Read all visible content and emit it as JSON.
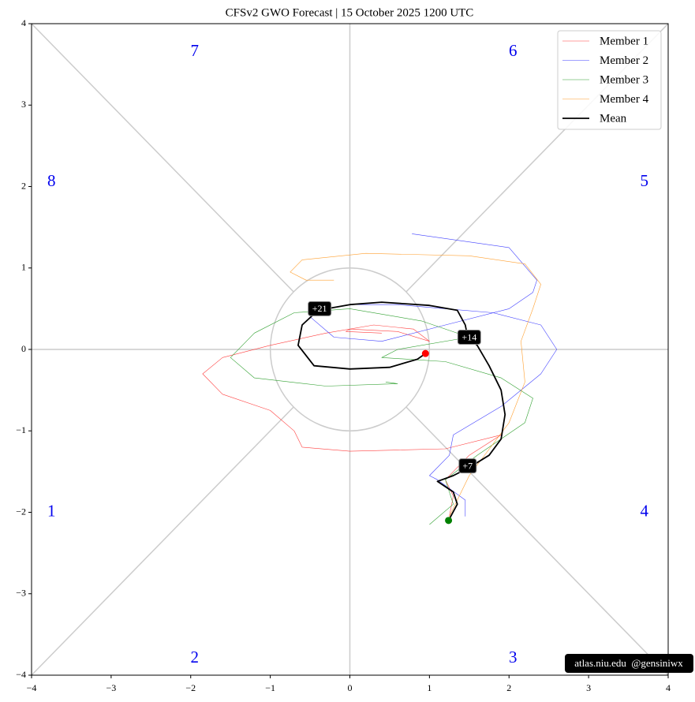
{
  "chart_data": {
    "type": "line",
    "title": "CFSv2 GWO Forecast   |   15  October  2025 1200 UTC",
    "xlim": [
      -4,
      4
    ],
    "ylim": [
      -4,
      4
    ],
    "xticks": [
      {
        "value": -4,
        "label": "−4"
      },
      {
        "value": -3,
        "label": "−3"
      },
      {
        "value": -2,
        "label": "−2"
      },
      {
        "value": -1,
        "label": "−1"
      },
      0,
      1,
      2,
      3,
      4
    ],
    "yticks": [
      {
        "value": -4,
        "label": "−4"
      },
      {
        "value": -3,
        "label": "−3"
      },
      {
        "value": -2,
        "label": "−2"
      },
      {
        "value": -1,
        "label": "−1"
      },
      0,
      1,
      2,
      3,
      4
    ],
    "legend_position": "upper right",
    "phase_labels": [
      "1",
      "2",
      "3",
      "4",
      "5",
      "6",
      "7",
      "8"
    ],
    "start_color": "green",
    "end_color": "red",
    "series": [
      {
        "name": "Member 1",
        "color": "#ff4040",
        "width": 0.6,
        "x": [
          1.25,
          1.3,
          1.2,
          1.5,
          1.9,
          1.2,
          0,
          -0.6,
          -0.7,
          -1.0,
          -1.6,
          -1.85,
          -1.6,
          -1.0,
          -0.3,
          0.3,
          0.8,
          1.0,
          0.6,
          0.0,
          -0.05,
          0.4
        ],
        "values": [
          -2.05,
          -1.8,
          -1.6,
          -1.3,
          -1.05,
          -1.22,
          -1.25,
          -1.2,
          -1.0,
          -0.75,
          -0.55,
          -0.3,
          -0.1,
          0.05,
          0.2,
          0.3,
          0.25,
          0.1,
          0.22,
          0.25,
          0.22,
          0.2
        ]
      },
      {
        "name": "Member 2",
        "color": "#4040ff",
        "width": 0.6,
        "x": [
          1.45,
          1.45,
          1.1,
          1.0,
          1.25,
          1.3,
          1.9,
          2.4,
          2.6,
          2.4,
          1.8,
          1.2,
          0.6,
          0.0,
          -0.3,
          -0.5,
          -0.2,
          0.4,
          1.2,
          2.0,
          2.3,
          2.35,
          2.0,
          0.78
        ],
        "values": [
          -2.05,
          -1.85,
          -1.6,
          -1.55,
          -1.3,
          -1.05,
          -0.7,
          -0.3,
          0.0,
          0.3,
          0.45,
          0.5,
          0.55,
          0.55,
          0.5,
          0.4,
          0.15,
          0.1,
          0.3,
          0.5,
          0.7,
          0.85,
          1.25,
          1.42
        ]
      },
      {
        "name": "Member 3",
        "color": "#30a030",
        "width": 0.6,
        "x": [
          1.0,
          1.3,
          1.2,
          1.6,
          2.2,
          2.3,
          1.9,
          1.2,
          0.4,
          0.6,
          1.5,
          0.9,
          0.0,
          -0.7,
          -1.2,
          -1.5,
          -1.2,
          -0.3,
          0.6,
          0.45
        ],
        "values": [
          -2.15,
          -1.9,
          -1.6,
          -1.3,
          -0.9,
          -0.6,
          -0.35,
          -0.15,
          -0.1,
          0.0,
          0.15,
          0.35,
          0.5,
          0.45,
          0.2,
          -0.1,
          -0.35,
          -0.45,
          -0.42,
          -0.4
        ]
      },
      {
        "name": "Member 4",
        "color": "#ffa030",
        "width": 0.6,
        "x": [
          1.25,
          1.5,
          2.0,
          2.2,
          2.15,
          2.3,
          2.4,
          2.2,
          1.5,
          0.2,
          -0.6,
          -0.75,
          -0.55,
          -0.2
        ],
        "values": [
          -2.05,
          -1.55,
          -0.9,
          -0.4,
          0.1,
          0.5,
          0.8,
          1.05,
          1.15,
          1.18,
          1.1,
          0.95,
          0.85,
          0.85
        ]
      },
      {
        "name": "Mean",
        "color": "#000000",
        "width": 1.8,
        "x": [
          1.24,
          1.35,
          1.3,
          1.1,
          1.3,
          1.5,
          1.75,
          1.9,
          1.95,
          1.9,
          1.75,
          1.6,
          1.48,
          1.45,
          1.35,
          1.0,
          0.4,
          0.0,
          -0.4,
          -0.6,
          -0.65,
          -0.45,
          0.0,
          0.5,
          0.85,
          0.95
        ],
        "values": [
          -2.1,
          -1.9,
          -1.75,
          -1.62,
          -1.55,
          -1.45,
          -1.3,
          -1.1,
          -0.8,
          -0.5,
          -0.2,
          0.05,
          0.15,
          0.3,
          0.48,
          0.54,
          0.58,
          0.55,
          0.48,
          0.3,
          0.05,
          -0.2,
          -0.24,
          -0.22,
          -0.12,
          -0.05
        ]
      }
    ],
    "annotations": [
      {
        "text": "+7",
        "x": 1.48,
        "y": -1.43
      },
      {
        "text": "+14",
        "x": 1.5,
        "y": 0.15
      },
      {
        "text": "+21",
        "x": -0.38,
        "y": 0.5
      }
    ],
    "credit": "atlas.niu.edu  @gensiniwx"
  }
}
